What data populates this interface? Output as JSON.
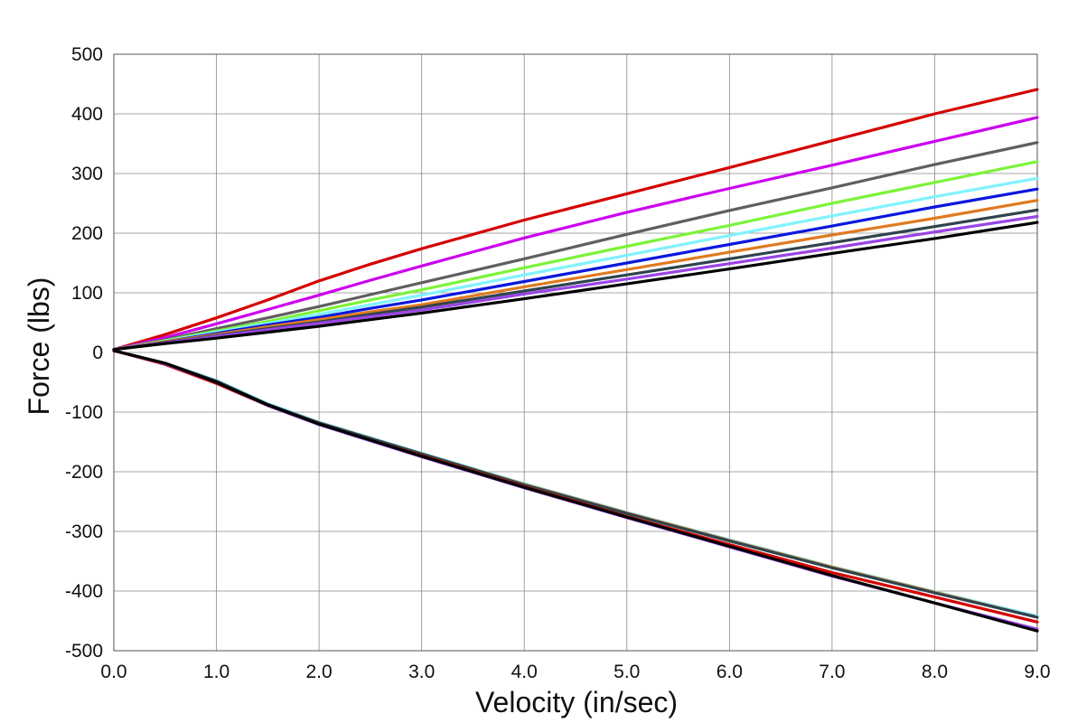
{
  "chart_data": {
    "type": "line",
    "title": "",
    "xlabel": "Velocity (in/sec)",
    "ylabel": "Force (lbs)",
    "xlim": [
      0,
      9
    ],
    "ylim": [
      -500,
      500
    ],
    "grid": true,
    "x_ticks": [
      "0.0",
      "1.0",
      "2.0",
      "3.0",
      "4.0",
      "5.0",
      "6.0",
      "7.0",
      "8.0",
      "9.0"
    ],
    "y_ticks": [
      "500",
      "400",
      "300",
      "200",
      "100",
      "0",
      "-100",
      "-200",
      "-300",
      "-400",
      "-500"
    ],
    "x": [
      0,
      0.5,
      1,
      1.5,
      2,
      2.5,
      3,
      4,
      5,
      6,
      7,
      8,
      9
    ],
    "series": [
      {
        "color": "#d40000",
        "values": [
          5,
          30,
          58,
          88,
          120,
          148,
          174,
          222,
          266,
          310,
          355,
          400,
          441
        ]
      },
      {
        "color": "#cc00ee",
        "values": [
          5,
          25,
          48,
          72,
          96,
          121,
          145,
          192,
          235,
          275,
          314,
          354,
          394
        ]
      },
      {
        "color": "#5f5f5f",
        "values": [
          5,
          21,
          40,
          58,
          77,
          97,
          117,
          157,
          198,
          238,
          276,
          315,
          352
        ]
      },
      {
        "color": "#7cf33a",
        "values": [
          5,
          20,
          36,
          52,
          70,
          88,
          105,
          142,
          178,
          213,
          250,
          285,
          320
        ]
      },
      {
        "color": "#7ff3ff",
        "values": [
          5,
          19,
          34,
          49,
          64,
          80,
          96,
          130,
          163,
          196,
          229,
          261,
          292
        ]
      },
      {
        "color": "#0a18dc",
        "values": [
          5,
          18,
          32,
          46,
          59,
          74,
          88,
          119,
          150,
          181,
          212,
          244,
          274
        ]
      },
      {
        "color": "#e07a20",
        "values": [
          5,
          18,
          30,
          43,
          55,
          68,
          80,
          110,
          139,
          168,
          197,
          225,
          255
        ]
      },
      {
        "color": "#30444e",
        "values": [
          5,
          17,
          28,
          40,
          51,
          64,
          76,
          103,
          130,
          157,
          184,
          211,
          239
        ]
      },
      {
        "color": "#9a44e6",
        "values": [
          5,
          16,
          27,
          38,
          49,
          60,
          71,
          98,
          123,
          149,
          175,
          202,
          228
        ]
      },
      {
        "color": "#000000",
        "values": [
          5,
          15,
          24,
          34,
          44,
          55,
          66,
          90,
          115,
          140,
          166,
          191,
          218
        ]
      },
      {
        "color": "#7ff3ff",
        "values": [
          3,
          -18,
          -47,
          -86,
          -117,
          -143,
          -169,
          -220,
          -268,
          -314,
          -359,
          -401,
          -442
        ]
      },
      {
        "color": "#e07a20",
        "values": [
          3,
          -18,
          -48,
          -88,
          -118,
          -144,
          -170,
          -221,
          -269,
          -315,
          -360,
          -402,
          -444
        ]
      },
      {
        "color": "#30444e",
        "values": [
          3,
          -18,
          -48,
          -87,
          -118,
          -144,
          -170,
          -222,
          -270,
          -316,
          -361,
          -403,
          -444
        ]
      },
      {
        "color": "#d40000",
        "values": [
          3,
          -20,
          -52,
          -89,
          -120,
          -147,
          -173,
          -225,
          -275,
          -322,
          -369,
          -410,
          -452
        ]
      },
      {
        "color": "#9a44e6",
        "values": [
          3,
          -19,
          -50,
          -89,
          -121,
          -148,
          -175,
          -227,
          -277,
          -326,
          -375,
          -420,
          -464
        ]
      },
      {
        "color": "#000000",
        "values": [
          3,
          -18,
          -50,
          -88,
          -120,
          -147,
          -174,
          -226,
          -276,
          -325,
          -374,
          -420,
          -467
        ]
      }
    ]
  }
}
